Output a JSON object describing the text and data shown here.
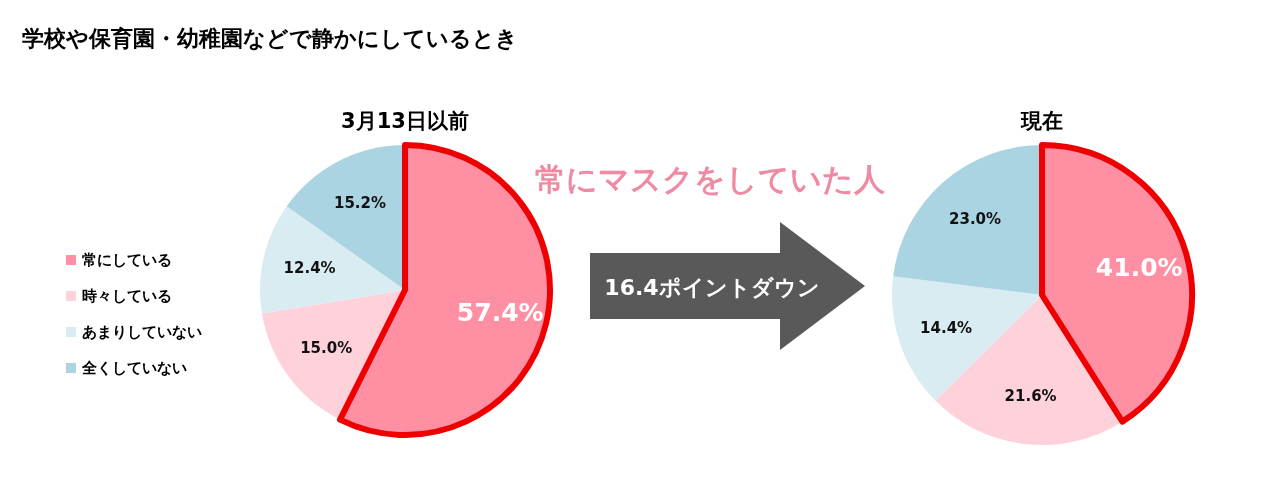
{
  "chart_data": [
    {
      "type": "pie",
      "title": "3月13日以前",
      "categories": [
        "常にしている",
        "時々している",
        "あまりしていない",
        "全くしていない"
      ],
      "values": [
        57.4,
        15.0,
        12.4,
        15.2
      ],
      "colors": [
        "#ff8fa3",
        "#ffd1db",
        "#d8ecf2",
        "#abd4e3"
      ],
      "value_labels": [
        "57.4%",
        "15.0%",
        "12.4%",
        "15.2%"
      ],
      "legend": "left",
      "annotations": [
        "学校や保育園・幼稚園などで静かにしているとき"
      ]
    },
    {
      "type": "pie",
      "title": "現在",
      "categories": [
        null,
        null,
        null,
        null
      ],
      "values": [
        41.0,
        21.6,
        14.4,
        23.0
      ],
      "colors": [
        "#ff8fa3",
        "#ffd1db",
        "#d8ecf2",
        "#abd4e3"
      ],
      "value_labels": [
        "41.0%",
        "21.6%",
        "14.4%",
        "23.0%"
      ],
      "legend": false,
      "annotations": [
        "常にマスクをしていた人",
        "16.4ポイントダウン"
      ]
    }
  ]
}
